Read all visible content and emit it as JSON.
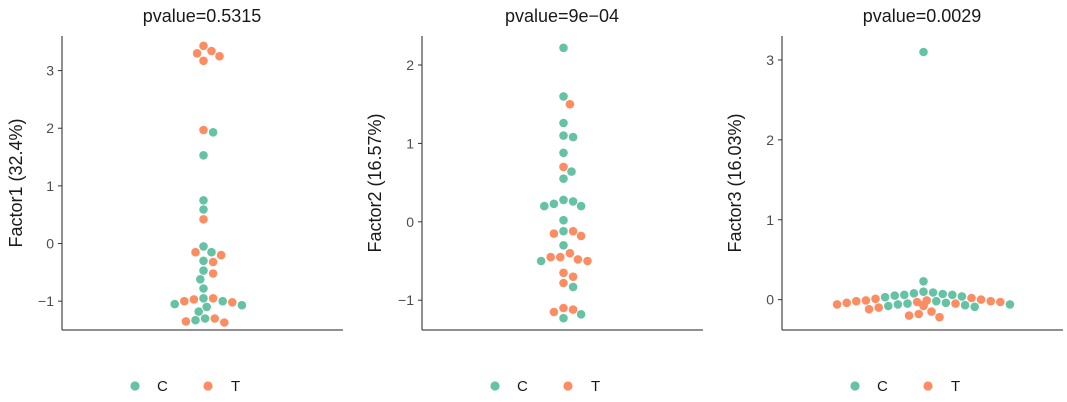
{
  "colors": {
    "C": "#66c2a5",
    "T": "#fc8d62"
  },
  "chart_data": [
    {
      "type": "scatter",
      "subtype": "beeswarm",
      "title": "pvalue=0.5315",
      "ylabel": "Factor1 (32.4%)",
      "xlabel": "",
      "ylim": [
        -1.5,
        3.6
      ],
      "yticks": [
        -1,
        0,
        1,
        2,
        3
      ],
      "ytick_labels": [
        "−1",
        "0",
        "1",
        "2",
        "3"
      ],
      "legend": {
        "placement": "bottom",
        "entries": [
          "C",
          "T"
        ]
      },
      "series": [
        {
          "name": "C",
          "values": [
            1.93,
            1.53,
            0.75,
            0.59,
            -0.05,
            -0.15,
            -0.3,
            -0.47,
            -0.62,
            -0.78,
            -0.95,
            -1.0,
            -1.05,
            -1.07,
            -1.1,
            -1.18,
            -1.3,
            -1.33
          ]
        },
        {
          "name": "T",
          "values": [
            3.43,
            3.34,
            3.3,
            3.25,
            3.17,
            1.97,
            0.42,
            -0.15,
            -0.2,
            -0.32,
            -0.52,
            -0.95,
            -0.97,
            -1.0,
            -1.02,
            -1.3,
            -1.35,
            -1.37
          ]
        }
      ]
    },
    {
      "type": "scatter",
      "subtype": "beeswarm",
      "title": "pvalue=9e−04",
      "ylabel": "Factor2 (16.57%)",
      "xlabel": "",
      "ylim": [
        -1.38,
        2.37
      ],
      "yticks": [
        -1,
        0,
        1,
        2
      ],
      "ytick_labels": [
        "−1",
        "0",
        "1",
        "2"
      ],
      "legend": {
        "placement": "bottom",
        "entries": [
          "C",
          "T"
        ]
      },
      "series": [
        {
          "name": "C",
          "values": [
            2.22,
            1.6,
            1.26,
            1.1,
            1.08,
            0.88,
            0.64,
            0.55,
            0.28,
            0.26,
            0.23,
            0.2,
            0.2,
            0.02,
            -0.12,
            -0.3,
            -0.5,
            -0.83,
            -1.18,
            -1.23
          ]
        },
        {
          "name": "T",
          "values": [
            1.5,
            0.7,
            -0.12,
            -0.15,
            -0.18,
            -0.4,
            -0.45,
            -0.45,
            -0.48,
            -0.5,
            -0.65,
            -0.7,
            -0.78,
            -1.1,
            -1.12,
            -1.15
          ]
        }
      ]
    },
    {
      "type": "scatter",
      "subtype": "beeswarm",
      "title": "pvalue=0.0029",
      "ylabel": "Factor3 (16.03%)",
      "xlabel": "",
      "ylim": [
        -0.38,
        3.3
      ],
      "yticks": [
        0,
        1,
        2,
        3
      ],
      "ytick_labels": [
        "0",
        "1",
        "2",
        "3"
      ],
      "legend": {
        "placement": "bottom",
        "entries": [
          "C",
          "T"
        ]
      },
      "series": [
        {
          "name": "C",
          "values": [
            3.1,
            0.23,
            0.1,
            0.09,
            0.08,
            0.07,
            0.06,
            0.06,
            0.05,
            0.04,
            0.03,
            -0.02,
            -0.04,
            -0.05,
            -0.06,
            -0.06,
            -0.07,
            -0.07,
            -0.08,
            -0.09
          ]
        },
        {
          "name": "T",
          "values": [
            0.02,
            0.01,
            0.0,
            -0.01,
            -0.01,
            -0.02,
            -0.02,
            -0.03,
            -0.03,
            -0.04,
            -0.05,
            -0.06,
            -0.07,
            -0.08,
            -0.1,
            -0.12,
            -0.15,
            -0.18,
            -0.2,
            -0.22
          ]
        }
      ]
    }
  ]
}
